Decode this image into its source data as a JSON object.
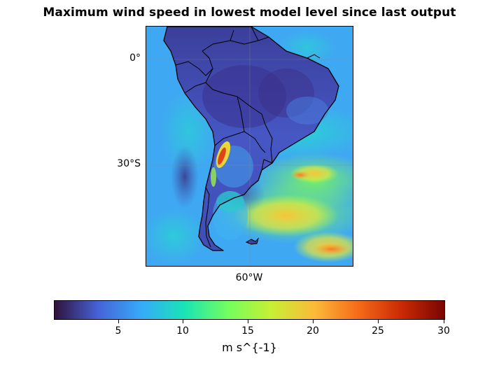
{
  "title": "Maximum wind speed in lowest model level since last output",
  "map": {
    "region": "South America",
    "lat_ticks": [
      "0°",
      "30°S"
    ],
    "lon_ticks": [
      "60°W"
    ],
    "gridlines": true,
    "coastlines": true,
    "borders": true
  },
  "colorbar": {
    "colormap": "turbo",
    "min": 0,
    "max": 30,
    "ticks": [
      "5",
      "10",
      "15",
      "20",
      "25",
      "30"
    ],
    "label": "m s^{-1}",
    "colors": [
      "#30123b",
      "#4662d7",
      "#36aaf9",
      "#1ae4b6",
      "#72fe5e",
      "#c8ef34",
      "#faba39",
      "#f66b19",
      "#ca2a04",
      "#7a0403"
    ]
  }
}
